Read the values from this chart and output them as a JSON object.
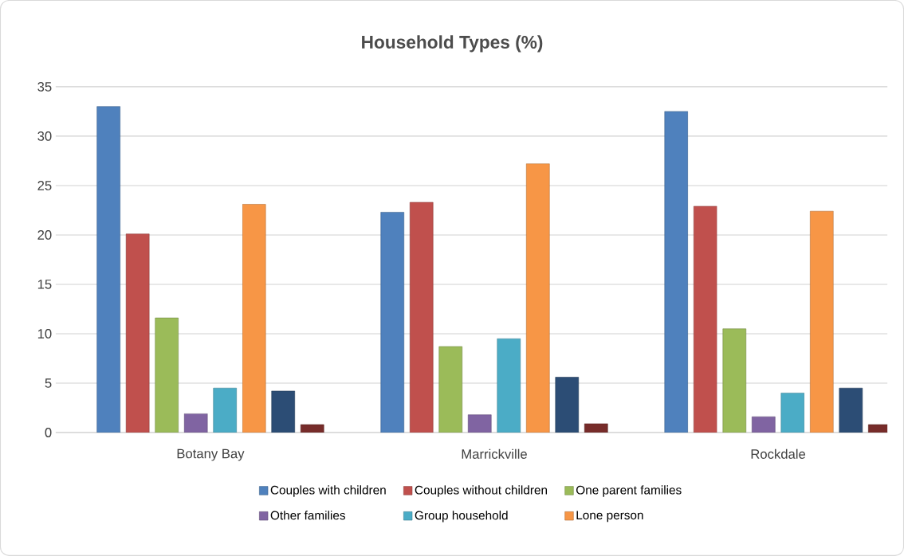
{
  "chart_data": {
    "type": "bar",
    "title": "Household Types (%)",
    "categories": [
      "Botany  Bay",
      "Marrickville",
      "Rockdale"
    ],
    "series": [
      {
        "name": "Couples with children",
        "color": "#4f81bd",
        "values": [
          33.0,
          22.3,
          32.5
        ]
      },
      {
        "name": "Couples without children",
        "color": "#c0504d",
        "values": [
          20.1,
          23.3,
          22.9
        ]
      },
      {
        "name": "One parent families",
        "color": "#9bbb59",
        "values": [
          11.6,
          8.7,
          10.5
        ]
      },
      {
        "name": "Other families",
        "color": "#8064a2",
        "values": [
          1.9,
          1.8,
          1.6
        ]
      },
      {
        "name": "Group household",
        "color": "#4bacc6",
        "values": [
          4.5,
          9.5,
          4.0
        ]
      },
      {
        "name": "Lone person",
        "color": "#f79646",
        "values": [
          23.1,
          27.2,
          22.4
        ]
      },
      {
        "color": "#2c4d75",
        "values": [
          4.2,
          5.6,
          4.5
        ]
      },
      {
        "color": "#772c2a",
        "values": [
          0.8,
          0.9,
          0.8
        ]
      }
    ],
    "ylim": [
      0,
      35
    ],
    "yticks": [
      0,
      5,
      10,
      15,
      20,
      25,
      30,
      35
    ],
    "grid": "y",
    "legend": "bottom"
  }
}
